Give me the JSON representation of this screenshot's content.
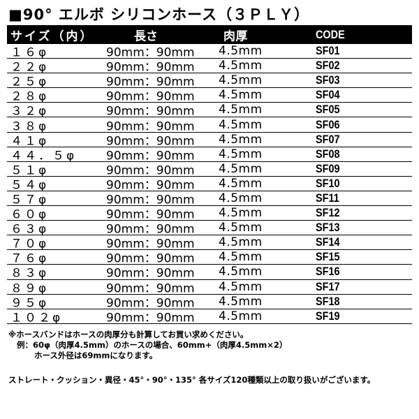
{
  "title": "■90° エルボ シリコンホース（３ＰＬＹ）",
  "table": {
    "headers": [
      "サイズ（内）",
      "長さ",
      "肉厚",
      "CODE"
    ],
    "rows": [
      [
        "１６φ",
        "90mm：90mm",
        "4.5mm",
        "SF01"
      ],
      [
        "２２φ",
        "90mm：90mm",
        "4.5mm",
        "SF02"
      ],
      [
        "２５φ",
        "90mm：90mm",
        "4.5mm",
        "SF03"
      ],
      [
        "２８φ",
        "90mm：90mm",
        "4.5mm",
        "SF04"
      ],
      [
        "３２φ",
        "90mm：90mm",
        "4.5mm",
        "SF05"
      ],
      [
        "３８φ",
        "90mm：90mm",
        "4.5mm",
        "SF06"
      ],
      [
        "４１φ",
        "90mm：90mm",
        "4.5mm",
        "SF07"
      ],
      [
        "４４．５φ",
        "90mm：90mm",
        "4.5mm",
        "SF08"
      ],
      [
        "５１φ",
        "90mm：90mm",
        "4.5mm",
        "SF09"
      ],
      [
        "５４φ",
        "90mm：90mm",
        "4.5mm",
        "SF10"
      ],
      [
        "５７φ",
        "90mm：90mm",
        "4.5mm",
        "SF11"
      ],
      [
        "６０φ",
        "90mm：90mm",
        "4.5mm",
        "SF12"
      ],
      [
        "６３φ",
        "90mm：90mm",
        "4.5mm",
        "SF13"
      ],
      [
        "７０φ",
        "90mm：90mm",
        "4.5mm",
        "SF14"
      ],
      [
        "７６φ",
        "90mm：90mm",
        "4.5mm",
        "SF15"
      ],
      [
        "８３φ",
        "90mm：90mm",
        "4.5mm",
        "SF16"
      ],
      [
        "８９φ",
        "90mm：90mm",
        "4.5mm",
        "SF17"
      ],
      [
        "９５φ",
        "90mm：90mm",
        "4.5mm",
        "SF18"
      ],
      [
        "１０２φ",
        "90mm：90mm",
        "4.5mm",
        "SF19"
      ]
    ]
  },
  "notes": [
    "※ホースバンドはホースの肉厚分も計算してお買い求めください。",
    "例：60φ（肉厚4.5mm）のホースの場合、60mm+（肉厚4.5mm×2）",
    "ホース外径は69mmになります。",
    "ストレート・クッション・異径・45°・90°・135° 各サイズ120種類以上の取り扱いがございます。"
  ]
}
